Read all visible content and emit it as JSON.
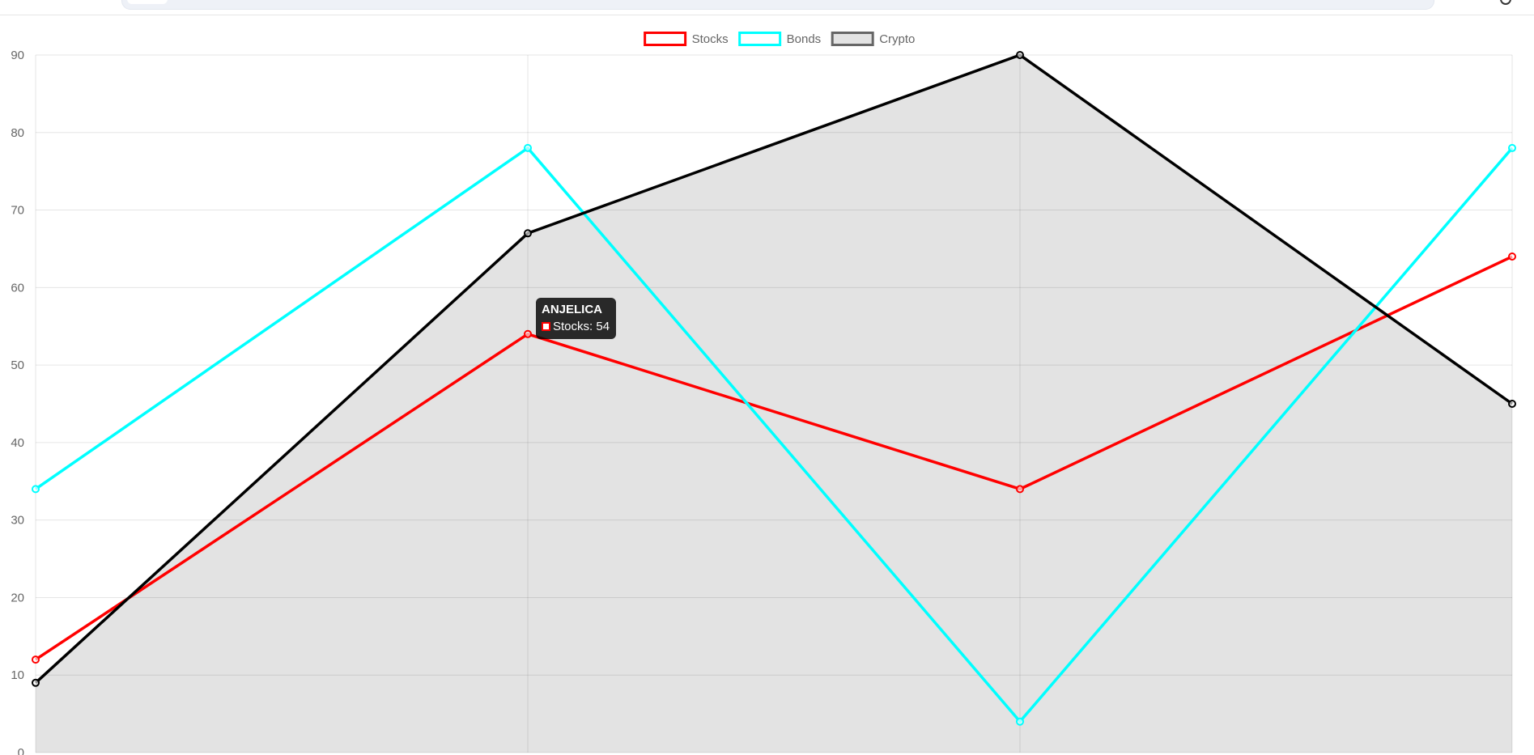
{
  "chart_data": {
    "type": "line",
    "categories": [
      "",
      "",
      "",
      ""
    ],
    "title": "",
    "xlabel": "",
    "ylabel": "",
    "ylim": [
      0,
      90
    ],
    "yticks": [
      0,
      10,
      20,
      30,
      40,
      50,
      60,
      70,
      80,
      90
    ],
    "grid": true,
    "legend_position": "top",
    "series": [
      {
        "name": "Stocks",
        "values": [
          12,
          54,
          34,
          64
        ],
        "color": "#ff0000",
        "fill": false
      },
      {
        "name": "Bonds",
        "values": [
          34,
          78,
          4,
          78
        ],
        "color": "#00ffff",
        "fill": false
      },
      {
        "name": "Crypto",
        "values": [
          9,
          67,
          90,
          45
        ],
        "color": "#000000",
        "fill": true,
        "fill_color": "rgba(0, 0, 0, 0.11)"
      }
    ]
  },
  "tooltip": {
    "title": "ANJELICA",
    "label": "Stocks: 54",
    "series": "Stocks",
    "category_index": 1
  }
}
